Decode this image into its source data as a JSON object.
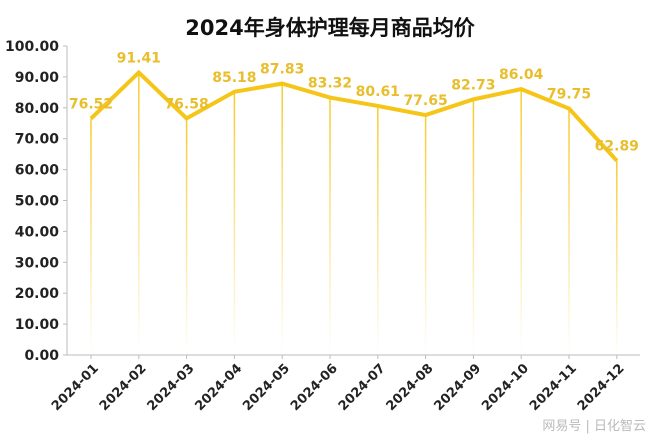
{
  "chart_data": {
    "type": "line",
    "title": "2024年身体护理每月商品均价",
    "xlabel": "",
    "ylabel": "",
    "categories": [
      "2024-01",
      "2024-02",
      "2024-03",
      "2024-04",
      "2024-05",
      "2024-06",
      "2024-07",
      "2024-08",
      "2024-09",
      "2024-10",
      "2024-11",
      "2024-12"
    ],
    "series": [
      {
        "name": "均价",
        "values": [
          76.52,
          91.41,
          76.58,
          85.18,
          87.83,
          83.32,
          80.61,
          77.65,
          82.73,
          86.04,
          79.75,
          62.89
        ]
      }
    ],
    "ylim": [
      0,
      100
    ],
    "yticks": [
      "0.00",
      "10.00",
      "20.00",
      "30.00",
      "40.00",
      "50.00",
      "60.00",
      "70.00",
      "80.00",
      "90.00",
      "100.00"
    ],
    "grid": false,
    "colors": {
      "line": "#F5C518",
      "label": "#E9BE2C",
      "axis": "#BBBBBB"
    }
  },
  "watermark": "网易号 | 日化智云"
}
